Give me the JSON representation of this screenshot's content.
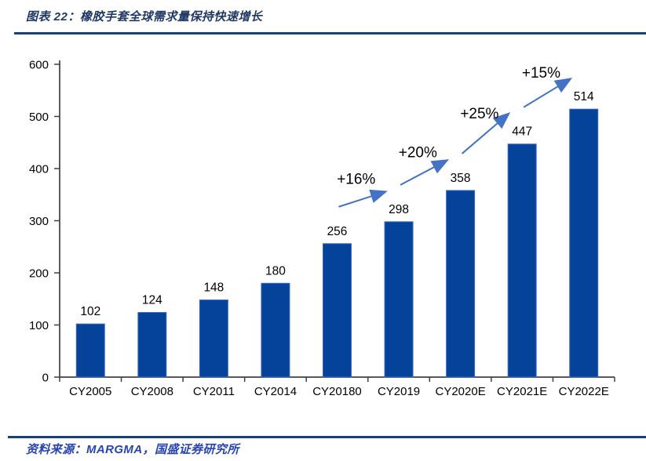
{
  "header": {
    "title": "图表 22：橡胶手套全球需求量保持快速增长"
  },
  "footer": {
    "source": "资料来源：MARGMA，国盛证券研究所"
  },
  "colors": {
    "accent_rule": "#17417E",
    "title_text": "#1F3864",
    "source_text": "#2845B0",
    "bar_fill": "#05439B",
    "bar_edge": "#3A6BC0",
    "arrow": "#4472C4",
    "axis": "#404040",
    "text": "#000000"
  },
  "chart_data": {
    "type": "bar",
    "title": "",
    "xlabel": "",
    "ylabel": "",
    "categories": [
      "CY2005",
      "CY2008",
      "CY2011",
      "CY2014",
      "CY20180",
      "CY2019",
      "CY2020E",
      "CY2021E",
      "CY2022E"
    ],
    "values": [
      102,
      124,
      148,
      180,
      256,
      298,
      358,
      447,
      514
    ],
    "ylim": [
      0,
      600
    ],
    "ytick_step": 100,
    "yticks": [
      0,
      100,
      200,
      300,
      400,
      500,
      600
    ],
    "grid": false,
    "legend": null,
    "growth_annotations": [
      {
        "from": "CY20180",
        "to": "CY2019",
        "label": "+16%"
      },
      {
        "from": "CY2019",
        "to": "CY2020E",
        "label": "+20%"
      },
      {
        "from": "CY2020E",
        "to": "CY2021E",
        "label": "+25%"
      },
      {
        "from": "CY2021E",
        "to": "CY2022E",
        "label": "+15%"
      }
    ]
  }
}
